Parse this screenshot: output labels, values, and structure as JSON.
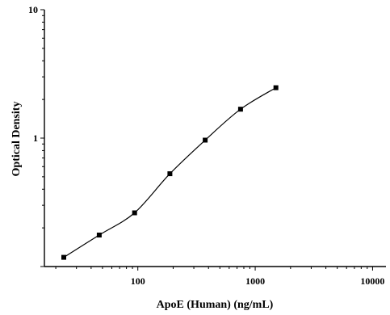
{
  "chart_data": {
    "type": "scatter",
    "title": "",
    "xlabel": "ApoE (Human) (ng/mL)",
    "ylabel": "Optical Density",
    "x_scale": "log",
    "y_scale": "log",
    "xlim": [
      16,
      13000
    ],
    "ylim": [
      0.1,
      10
    ],
    "x_ticks": [
      {
        "value": 100,
        "label": "100"
      },
      {
        "value": 1000,
        "label": "1000"
      },
      {
        "value": 10000,
        "label": "10000"
      }
    ],
    "y_ticks": [
      {
        "value": 1,
        "label": "1"
      },
      {
        "value": 10,
        "label": "10"
      }
    ],
    "grid": false,
    "series": [
      {
        "marker": "square",
        "color": "#000000",
        "points": [
          {
            "x": 23.4,
            "y": 0.118
          },
          {
            "x": 46.9,
            "y": 0.176
          },
          {
            "x": 93.8,
            "y": 0.262
          },
          {
            "x": 187.5,
            "y": 0.528
          },
          {
            "x": 375,
            "y": 0.965
          },
          {
            "x": 750,
            "y": 1.68
          },
          {
            "x": 1500,
            "y": 2.47
          }
        ]
      }
    ],
    "fit_curve": {
      "type": "4-parameter logistic",
      "color": "#000000",
      "x_range": [
        23.4,
        1500
      ]
    }
  }
}
